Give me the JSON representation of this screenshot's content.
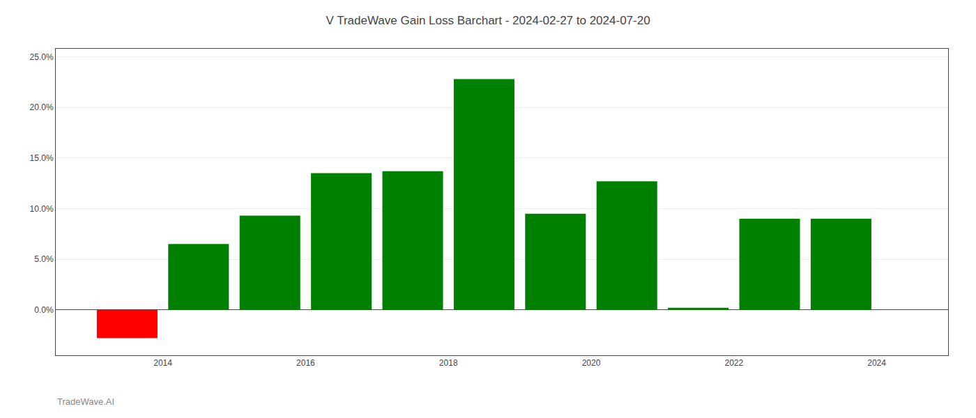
{
  "chart_data": {
    "type": "bar",
    "title": "V TradeWave Gain Loss Barchart - 2024-02-27 to 2024-07-20",
    "annotations": [
      "TradeWave.AI"
    ],
    "x": [
      2013.5,
      2014.5,
      2015.5,
      2016.5,
      2017.5,
      2018.5,
      2019.5,
      2020.5,
      2021.5,
      2022.5,
      2023.5
    ],
    "values": [
      -0.028,
      0.065,
      0.093,
      0.135,
      0.137,
      0.228,
      0.095,
      0.127,
      0.002,
      0.09,
      0.09
    ],
    "colors": [
      "#ff0000",
      "#008000",
      "#008000",
      "#008000",
      "#008000",
      "#008000",
      "#008000",
      "#008000",
      "#008000",
      "#008000",
      "#008000"
    ],
    "xlim": [
      2012.5,
      2025.0
    ],
    "xticks": [
      2014,
      2016,
      2018,
      2020,
      2022,
      2024
    ],
    "ylim": [
      -0.045,
      0.258
    ],
    "yticks": [
      {
        "value": 0.0,
        "label": "0.0%"
      },
      {
        "value": 0.05,
        "label": "5.0%"
      },
      {
        "value": 0.1,
        "label": "10.0%"
      },
      {
        "value": 0.15,
        "label": "15.0%"
      },
      {
        "value": 0.2,
        "label": "20.0%"
      },
      {
        "value": 0.25,
        "label": "25.0%"
      }
    ],
    "grid": true
  }
}
